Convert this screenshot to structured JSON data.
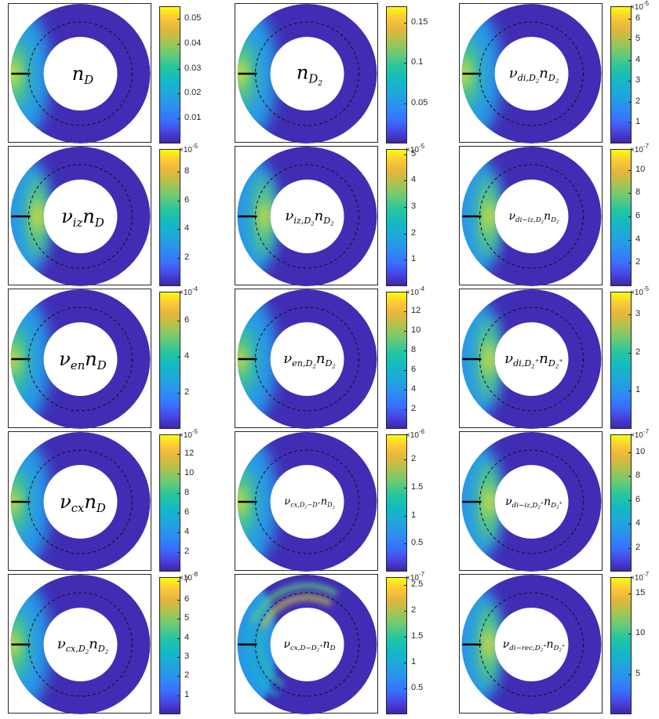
{
  "chart_data": [
    {
      "type": "heatmap",
      "label_html": "n<sub>D</sub>",
      "colorbar_ticks": [
        "0.01",
        "0.02",
        "0.03",
        "0.04",
        "0.05"
      ],
      "tick_values": [
        0.01,
        0.02,
        0.03,
        0.04,
        0.05
      ],
      "clim": [
        0.0,
        0.055
      ],
      "exponent": "",
      "peak": 0.055,
      "style": "edge",
      "label_size": 24
    },
    {
      "type": "heatmap",
      "label_html": "n<sub>D<sub>2</sub></sub>",
      "colorbar_ticks": [
        "0.05",
        "0.1",
        "0.15"
      ],
      "tick_values": [
        0.05,
        0.1,
        0.15
      ],
      "clim": [
        0.0,
        0.17
      ],
      "exponent": "",
      "peak": 0.17,
      "style": "edge",
      "label_size": 24
    },
    {
      "type": "heatmap",
      "label_html": "ν<sub>di,D<sub>2</sub></sub>n<sub>D<sub>2</sub></sub>",
      "colorbar_ticks": [
        "1",
        "2",
        "3",
        "4",
        "5",
        "6"
      ],
      "tick_values": [
        1,
        2,
        3,
        4,
        5,
        6
      ],
      "clim": [
        0.0,
        6.6
      ],
      "exponent": "-5",
      "peak": 6.5,
      "style": "edge",
      "label_size": 18
    },
    {
      "type": "heatmap",
      "label_html": "ν<sub>iz</sub>n<sub>D</sub>",
      "colorbar_ticks": [
        "2",
        "4",
        "6",
        "8"
      ],
      "tick_values": [
        2,
        4,
        6,
        8
      ],
      "clim": [
        0.0,
        9.6
      ],
      "exponent": "-5",
      "peak": 9.4,
      "style": "blob",
      "label_size": 24
    },
    {
      "type": "heatmap",
      "label_html": "ν<sub>iz,D<sub>2</sub></sub>n<sub>D<sub>2</sub></sub>",
      "colorbar_ticks": [
        "1",
        "2",
        "3",
        "4",
        "5"
      ],
      "tick_values": [
        1,
        2,
        3,
        4,
        5
      ],
      "clim": [
        0.0,
        5.2
      ],
      "exponent": "-5",
      "peak": 5.0,
      "style": "blob",
      "label_size": 18
    },
    {
      "type": "heatmap",
      "label_html": "ν<sub>di−iz,D<sub>2</sub></sub>n<sub>D<sub>2</sub></sub>",
      "colorbar_ticks": [
        "2",
        "4",
        "6",
        "8",
        "10"
      ],
      "tick_values": [
        2,
        4,
        6,
        8,
        10
      ],
      "clim": [
        0.0,
        11.8
      ],
      "exponent": "-7",
      "peak": 11.5,
      "style": "blob",
      "label_size": 14
    },
    {
      "type": "heatmap",
      "label_html": "ν<sub>en</sub>n<sub>D</sub>",
      "colorbar_ticks": [
        "2",
        "4",
        "6"
      ],
      "tick_values": [
        2,
        4,
        6
      ],
      "clim": [
        0.0,
        7.6
      ],
      "exponent": "-4",
      "peak": 7.4,
      "style": "edge",
      "label_size": 24
    },
    {
      "type": "heatmap",
      "label_html": "ν<sub>en,D<sub>2</sub></sub>n<sub>D<sub>2</sub></sub>",
      "colorbar_ticks": [
        "2",
        "4",
        "6",
        "8",
        "10",
        "12"
      ],
      "tick_values": [
        2,
        4,
        6,
        8,
        10,
        12
      ],
      "clim": [
        0.0,
        14.0
      ],
      "exponent": "-4",
      "peak": 13.5,
      "style": "edge",
      "label_size": 18
    },
    {
      "type": "heatmap",
      "label_html": "ν<sub>di,D<sub>2</sub><sup>+</sup></sub>n<sub>D<sub>2</sub><sup>+</sup></sub>",
      "colorbar_ticks": [
        "1",
        "2",
        "3"
      ],
      "tick_values": [
        1,
        2,
        3
      ],
      "clim": [
        0.0,
        3.6
      ],
      "exponent": "-5",
      "peak": 3.5,
      "style": "blob",
      "label_size": 18
    },
    {
      "type": "heatmap",
      "label_html": "ν<sub>cx</sub>n<sub>D</sub>",
      "colorbar_ticks": [
        "2",
        "4",
        "6",
        "8",
        "10",
        "12"
      ],
      "tick_values": [
        2,
        4,
        6,
        8,
        10,
        12
      ],
      "clim": [
        0.0,
        14.0
      ],
      "exponent": "-5",
      "peak": 13.5,
      "style": "edge",
      "label_size": 24
    },
    {
      "type": "heatmap",
      "label_html": "ν<sub>cx,D<sub>2</sub>−D<sup>+</sup></sub>n<sub>D<sub>2</sub></sub>",
      "colorbar_ticks": [
        "0.5",
        "1",
        "1.5",
        "2"
      ],
      "tick_values": [
        0.5,
        1,
        1.5,
        2
      ],
      "clim": [
        0.0,
        2.45
      ],
      "exponent": "-6",
      "peak": 2.4,
      "style": "edge",
      "label_size": 13
    },
    {
      "type": "heatmap",
      "label_html": "ν<sub>di−iz,D<sub>2</sub><sup>+</sup></sub>n<sub>D<sub>2</sub><sup>+</sup></sub>",
      "colorbar_ticks": [
        "2",
        "4",
        "6",
        "8",
        "10"
      ],
      "tick_values": [
        2,
        4,
        6,
        8,
        10
      ],
      "clim": [
        0.0,
        11.5
      ],
      "exponent": "-7",
      "peak": 11.2,
      "style": "blob",
      "label_size": 14
    },
    {
      "type": "heatmap",
      "label_html": "ν<sub>cx,D<sub>2</sub></sub>n<sub>D<sub>2</sub></sub>",
      "colorbar_ticks": [
        "1",
        "2",
        "3",
        "4",
        "5",
        "6",
        "7"
      ],
      "tick_values": [
        1,
        2,
        3,
        4,
        5,
        6,
        7
      ],
      "clim": [
        0.0,
        7.2
      ],
      "exponent": "-8",
      "peak": 7.0,
      "style": "edge",
      "label_size": 18
    },
    {
      "type": "heatmap",
      "label_html": "ν<sub>cx,D−D<sub>2</sub><sup>+</sup></sub>n<sub>D</sub>",
      "colorbar_ticks": [
        "0.5",
        "1",
        "1.5",
        "2",
        "2.5"
      ],
      "tick_values": [
        0.5,
        1,
        1.5,
        2,
        2.5
      ],
      "clim": [
        0.0,
        2.65
      ],
      "exponent": "-7",
      "peak": 2.6,
      "style": "arc",
      "label_size": 14
    },
    {
      "type": "heatmap",
      "label_html": "ν<sub>di−rec,D<sub>2</sub><sup>+</sup></sub>n<sub>D<sub>2</sub><sup>+</sup></sub>",
      "colorbar_ticks": [
        "5",
        "10",
        "15"
      ],
      "tick_values": [
        5,
        10,
        15
      ],
      "clim": [
        0.0,
        17.0
      ],
      "exponent": "-7",
      "peak": 16.5,
      "style": "blob",
      "label_size": 14
    }
  ]
}
